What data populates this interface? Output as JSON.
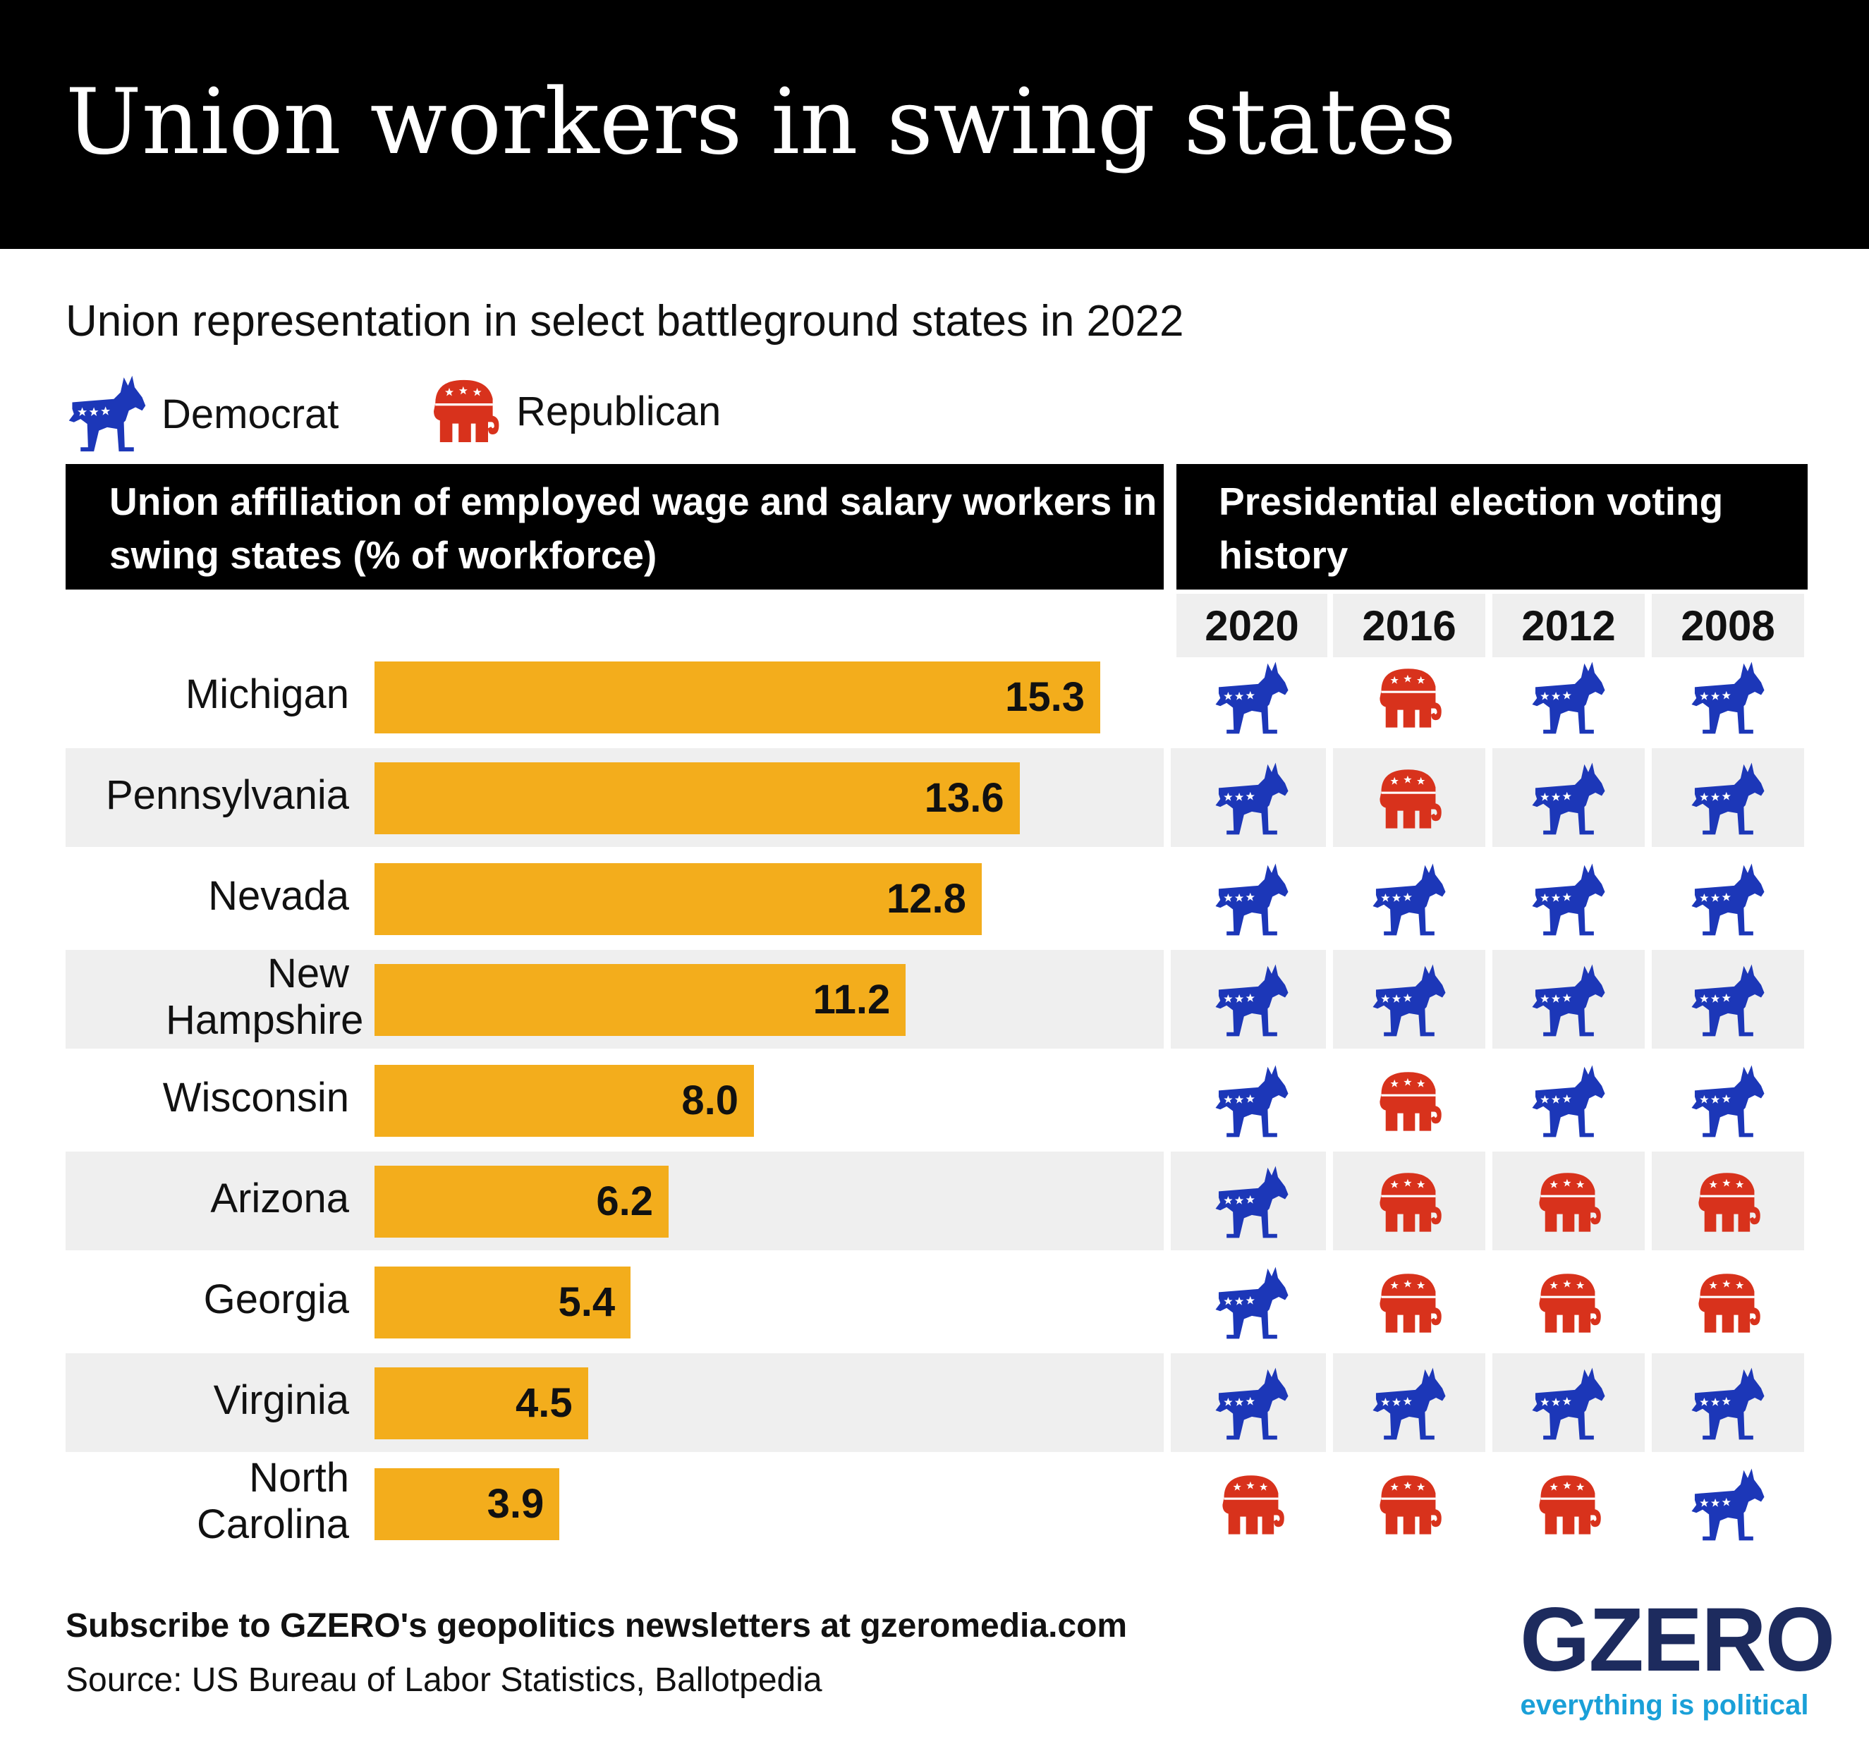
{
  "title": "Union workers in swing states",
  "subtitle": "Union representation in select battleground states in 2022",
  "legend": {
    "democrat": "Democrat",
    "republican": "Republican"
  },
  "left_header": "Union affiliation of employed wage and salary workers in swing states (% of workforce)",
  "right_header": "Presidential election voting history",
  "colors": {
    "bar": "#f3ad1c",
    "democrat": "#1c37b8",
    "republican": "#d8321c",
    "row_shade": "#efefef"
  },
  "chart_data": {
    "type": "bar",
    "categories": [
      "Michigan",
      "Pennsylvania",
      "Nevada",
      "New Hampshire",
      "Wisconsin",
      "Arizona",
      "Georgia",
      "Virginia",
      "North Carolina"
    ],
    "values": [
      15.3,
      13.6,
      12.8,
      11.2,
      8.0,
      6.2,
      5.4,
      4.5,
      3.9
    ],
    "value_labels": [
      "15.3",
      "13.6",
      "12.8",
      "11.2",
      "8.0",
      "6.2",
      "5.4",
      "4.5",
      "3.9"
    ],
    "xlim": [
      0,
      16.5
    ]
  },
  "voting_history": {
    "years": [
      "2020",
      "2016",
      "2012",
      "2008"
    ],
    "results": [
      [
        "D",
        "R",
        "D",
        "D"
      ],
      [
        "D",
        "R",
        "D",
        "D"
      ],
      [
        "D",
        "D",
        "D",
        "D"
      ],
      [
        "D",
        "D",
        "D",
        "D"
      ],
      [
        "D",
        "R",
        "D",
        "D"
      ],
      [
        "D",
        "R",
        "R",
        "R"
      ],
      [
        "D",
        "R",
        "R",
        "R"
      ],
      [
        "D",
        "D",
        "D",
        "D"
      ],
      [
        "R",
        "R",
        "R",
        "D"
      ]
    ]
  },
  "footer": {
    "subscribe": "Subscribe to GZERO's geopolitics newsletters at gzeromedia.com",
    "source": "Source: US Bureau of Labor Statistics, Ballotpedia"
  },
  "logo": {
    "name": "GZERO",
    "tagline": "everything is political"
  }
}
